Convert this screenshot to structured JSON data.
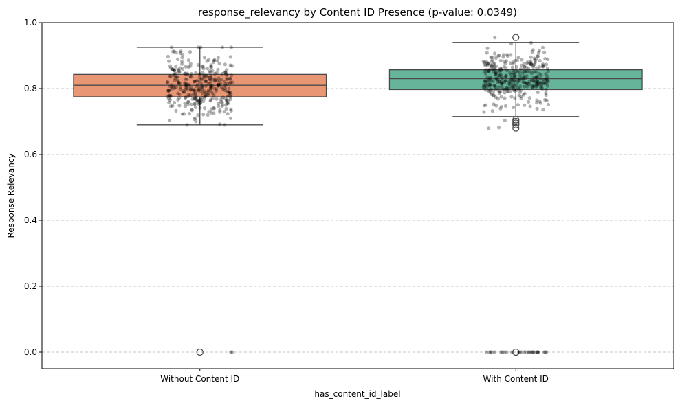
{
  "chart_data": {
    "type": "box",
    "title": "response_relevancy by Content ID Presence (p-value: 0.0349)",
    "xlabel": "has_content_id_label",
    "ylabel": "Response Relevancy",
    "categories": [
      "Without Content ID",
      "With Content ID"
    ],
    "ylim": [
      -0.05,
      1.0
    ],
    "yticks": [
      0.0,
      0.2,
      0.4,
      0.6,
      0.8,
      1.0
    ],
    "ytick_labels": [
      "0.0",
      "0.2",
      "0.4",
      "0.6",
      "0.8",
      "1.0"
    ],
    "grid": "horizontal dashed",
    "colors": [
      "#e99675",
      "#66b49a"
    ],
    "boxes": [
      {
        "category": "Without Content ID",
        "whisker_low": 0.69,
        "q1": 0.775,
        "median": 0.81,
        "q3": 0.843,
        "whisker_high": 0.925,
        "outliers": [
          0.0
        ],
        "strip_range": [
          0.69,
          0.925
        ],
        "strip_zeros": 2
      },
      {
        "category": "With Content ID",
        "whisker_low": 0.715,
        "q1": 0.797,
        "median": 0.83,
        "q3": 0.857,
        "whisker_high": 0.94,
        "outliers": [
          0.955,
          0.705,
          0.7,
          0.695,
          0.69,
          0.68,
          0.0
        ],
        "strip_range": [
          0.675,
          0.955
        ],
        "strip_zeros": 28
      }
    ]
  }
}
